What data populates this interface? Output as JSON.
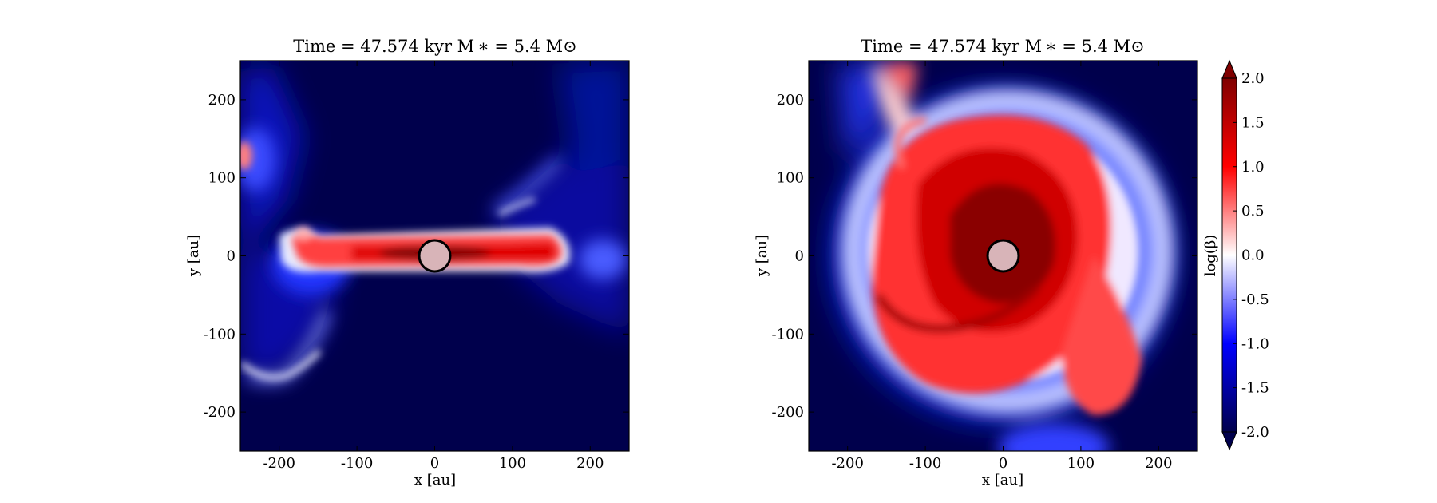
{
  "chart_data": [
    {
      "type": "heatmap",
      "title": "Time = 47.574 kyr    M ∗ = 5.4 M⊙",
      "xlabel": "x [au]",
      "ylabel": "y [au]",
      "xlim": [
        -250,
        250
      ],
      "ylim": [
        -250,
        250
      ],
      "xticks": [
        "-200",
        "-100",
        "0",
        "100",
        "200"
      ],
      "yticks": [
        "200",
        "100",
        "0",
        "-100",
        "-200"
      ],
      "xtick_values": [
        -200,
        -100,
        0,
        100,
        200
      ],
      "ytick_values": [
        200,
        100,
        0,
        -100,
        -200
      ],
      "view": "edge-on",
      "sink": {
        "x": 0,
        "y": 0,
        "radius_au": 20
      }
    },
    {
      "type": "heatmap",
      "title": "Time = 47.574 kyr    M ∗ = 5.4 M⊙",
      "xlabel": "x [au]",
      "ylabel": "y [au]",
      "xlim": [
        -250,
        250
      ],
      "ylim": [
        -250,
        250
      ],
      "xticks": [
        "-200",
        "-100",
        "0",
        "100",
        "200"
      ],
      "yticks": [
        "200",
        "100",
        "0",
        "-100",
        "-200"
      ],
      "xtick_values": [
        -200,
        -100,
        0,
        100,
        200
      ],
      "ytick_values": [
        200,
        100,
        0,
        -100,
        -200
      ],
      "view": "face-on",
      "sink": {
        "x": 0,
        "y": 0,
        "radius_au": 20
      }
    }
  ],
  "colorbar": {
    "label": "log(β)",
    "range": [
      -2.0,
      2.0
    ],
    "ticks": [
      "2.0",
      "1.5",
      "1.0",
      "0.5",
      "0.0",
      "-0.5",
      "-1.0",
      "-1.5",
      "-2.0"
    ],
    "tick_values": [
      2.0,
      1.5,
      1.0,
      0.5,
      0.0,
      -0.5,
      -1.0,
      -1.5,
      -2.0
    ],
    "colormap": "seismic",
    "extend": "both",
    "colors": {
      "low": "#00004c",
      "mid": "#ffffff",
      "high": "#800000"
    }
  }
}
